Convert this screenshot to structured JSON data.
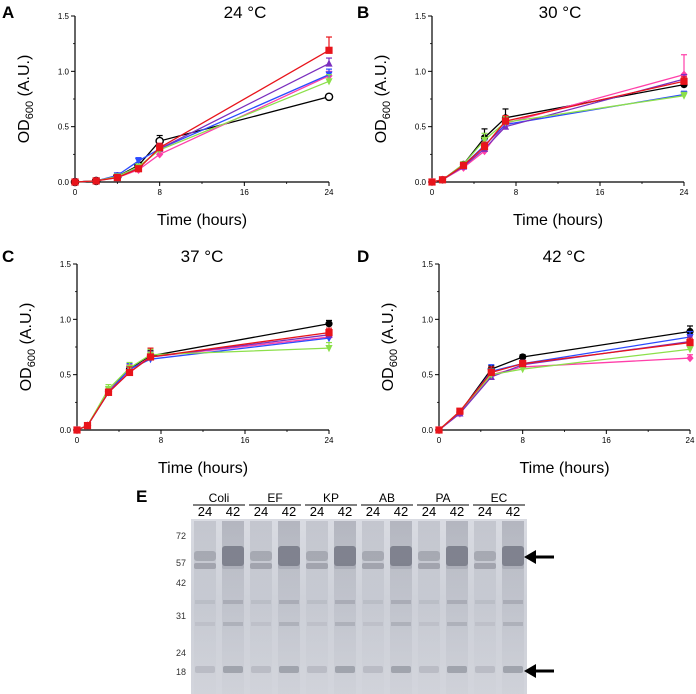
{
  "figure": {
    "series_colors": {
      "Coli": "#000000",
      "EF": "#ff3fa9",
      "KP": "#2b4bff",
      "AB": "#7b2fbe",
      "PA": "#8ce04a",
      "EC": "#e8141b"
    },
    "ylabel_main": "OD",
    "ylabel_sub": "600",
    "ylabel_suffix": " (A.U.)"
  },
  "chart_data": [
    {
      "panel": "A",
      "type": "line",
      "title": "24 °C",
      "xlabel": "Time (hours)",
      "ylabel": "OD600 (A.U.)",
      "xlim": [
        0,
        24
      ],
      "ylim": [
        0,
        1.5
      ],
      "xticks": [
        "0",
        "8",
        "16",
        "24"
      ],
      "yticks": [
        "0.0",
        "0.5",
        "1.0",
        "1.5"
      ],
      "x": [
        0,
        2,
        4,
        6,
        8,
        24
      ],
      "series": [
        {
          "name": "Coli",
          "values": [
            0.0,
            0.01,
            0.05,
            0.15,
            0.37,
            0.77
          ],
          "errors": [
            0,
            0,
            0.01,
            0.02,
            0.05,
            0.02
          ],
          "marker": "open-circle"
        },
        {
          "name": "EF",
          "values": [
            0.0,
            0.01,
            0.04,
            0.11,
            0.25,
            0.96
          ],
          "errors": [
            0,
            0,
            0.01,
            0.02,
            0.03,
            0.04
          ],
          "marker": "diamond"
        },
        {
          "name": "KP",
          "values": [
            0.0,
            0.01,
            0.06,
            0.19,
            0.3,
            0.97
          ],
          "errors": [
            0,
            0,
            0.01,
            0.03,
            0.04,
            0.05
          ],
          "marker": "triangle-down"
        },
        {
          "name": "AB",
          "values": [
            0.0,
            0.01,
            0.05,
            0.13,
            0.3,
            1.07
          ],
          "errors": [
            0,
            0,
            0.01,
            0.02,
            0.03,
            0.05
          ],
          "marker": "triangle-up"
        },
        {
          "name": "PA",
          "values": [
            0.0,
            0.01,
            0.05,
            0.14,
            0.29,
            0.91
          ],
          "errors": [
            0,
            0,
            0.01,
            0.02,
            0.03,
            0.06
          ],
          "marker": "triangle-down"
        },
        {
          "name": "EC",
          "values": [
            0.0,
            0.01,
            0.04,
            0.12,
            0.31,
            1.19
          ],
          "errors": [
            0,
            0,
            0.01,
            0.02,
            0.04,
            0.12
          ],
          "marker": "square"
        }
      ]
    },
    {
      "panel": "B",
      "type": "line",
      "title": "30 °C",
      "xlabel": "Time (hours)",
      "ylabel": "OD600 (A.U.)",
      "xlim": [
        0,
        24
      ],
      "ylim": [
        0,
        1.5
      ],
      "xticks": [
        "0",
        "8",
        "16",
        "24"
      ],
      "yticks": [
        "0.0",
        "0.5",
        "1.0",
        "1.5"
      ],
      "x": [
        0,
        1,
        3,
        5,
        7,
        24
      ],
      "series": [
        {
          "name": "Coli",
          "values": [
            0.0,
            0.02,
            0.16,
            0.4,
            0.58,
            0.88
          ],
          "errors": [
            0,
            0,
            0.02,
            0.08,
            0.08,
            0.03
          ],
          "marker": "circle"
        },
        {
          "name": "EF",
          "values": [
            0.0,
            0.02,
            0.13,
            0.28,
            0.53,
            0.97
          ],
          "errors": [
            0,
            0,
            0.02,
            0.05,
            0.05,
            0.18
          ],
          "marker": "diamond"
        },
        {
          "name": "KP",
          "values": [
            0.0,
            0.02,
            0.15,
            0.33,
            0.52,
            0.79
          ],
          "errors": [
            0,
            0,
            0.03,
            0.05,
            0.04,
            0.03
          ],
          "marker": "triangle-down"
        },
        {
          "name": "AB",
          "values": [
            0.0,
            0.02,
            0.14,
            0.3,
            0.5,
            0.93
          ],
          "errors": [
            0,
            0,
            0.02,
            0.04,
            0.04,
            0.04
          ],
          "marker": "triangle-up"
        },
        {
          "name": "PA",
          "values": [
            0.0,
            0.02,
            0.16,
            0.38,
            0.54,
            0.78
          ],
          "errors": [
            0,
            0,
            0.02,
            0.06,
            0.05,
            0.03
          ],
          "marker": "triangle-down"
        },
        {
          "name": "EC",
          "values": [
            0.0,
            0.02,
            0.15,
            0.32,
            0.55,
            0.91
          ],
          "errors": [
            0,
            0,
            0.02,
            0.04,
            0.05,
            0.04
          ],
          "marker": "square"
        }
      ]
    },
    {
      "panel": "C",
      "type": "line",
      "title": "37 °C",
      "xlabel": "Time (hours)",
      "ylabel": "OD600 (A.U.)",
      "xlim": [
        0,
        24
      ],
      "ylim": [
        0,
        1.5
      ],
      "xticks": [
        "0",
        "8",
        "16",
        "24"
      ],
      "yticks": [
        "0.0",
        "0.5",
        "1.0",
        "1.5"
      ],
      "x": [
        0,
        1,
        3,
        5,
        7,
        24
      ],
      "series": [
        {
          "name": "Coli",
          "values": [
            0.0,
            0.04,
            0.35,
            0.55,
            0.67,
            0.96
          ],
          "errors": [
            0,
            0.01,
            0.03,
            0.05,
            0.05,
            0.03
          ],
          "marker": "circle"
        },
        {
          "name": "EF",
          "values": [
            0.0,
            0.04,
            0.35,
            0.54,
            0.66,
            0.84
          ],
          "errors": [
            0,
            0.01,
            0.03,
            0.05,
            0.05,
            0.04
          ],
          "marker": "diamond"
        },
        {
          "name": "KP",
          "values": [
            0.0,
            0.04,
            0.34,
            0.55,
            0.64,
            0.83
          ],
          "errors": [
            0,
            0.01,
            0.03,
            0.05,
            0.05,
            0.04
          ],
          "marker": "triangle-down"
        },
        {
          "name": "AB",
          "values": [
            0.0,
            0.04,
            0.34,
            0.52,
            0.66,
            0.86
          ],
          "errors": [
            0,
            0.01,
            0.03,
            0.05,
            0.05,
            0.04
          ],
          "marker": "triangle-up"
        },
        {
          "name": "PA",
          "values": [
            0.0,
            0.04,
            0.37,
            0.56,
            0.68,
            0.74
          ],
          "errors": [
            0,
            0.01,
            0.04,
            0.05,
            0.05,
            0.05
          ],
          "marker": "triangle-down"
        },
        {
          "name": "EC",
          "values": [
            0.0,
            0.04,
            0.34,
            0.52,
            0.66,
            0.88
          ],
          "errors": [
            0,
            0.01,
            0.03,
            0.05,
            0.08,
            0.04
          ],
          "marker": "square"
        }
      ]
    },
    {
      "panel": "D",
      "type": "line",
      "title": "42 °C",
      "xlabel": "Time (hours)",
      "ylabel": "OD600 (A.U.)",
      "xlim": [
        0,
        24
      ],
      "ylim": [
        0,
        1.5
      ],
      "xticks": [
        "0",
        "8",
        "16",
        "24"
      ],
      "yticks": [
        "0.0",
        "0.5",
        "1.0",
        "1.5"
      ],
      "x": [
        0,
        2,
        5,
        8,
        24
      ],
      "series": [
        {
          "name": "Coli",
          "values": [
            0.0,
            0.16,
            0.55,
            0.66,
            0.89
          ],
          "errors": [
            0,
            0.02,
            0.03,
            0.02,
            0.05
          ],
          "marker": "circle"
        },
        {
          "name": "EF",
          "values": [
            0.0,
            0.15,
            0.5,
            0.57,
            0.65
          ],
          "errors": [
            0,
            0.02,
            0.05,
            0.03,
            0.03
          ],
          "marker": "diamond"
        },
        {
          "name": "KP",
          "values": [
            0.0,
            0.16,
            0.53,
            0.6,
            0.84
          ],
          "errors": [
            0,
            0.02,
            0.06,
            0.03,
            0.05
          ],
          "marker": "triangle-down"
        },
        {
          "name": "AB",
          "values": [
            0.0,
            0.15,
            0.48,
            0.59,
            0.8
          ],
          "errors": [
            0,
            0.02,
            0.06,
            0.03,
            0.05
          ],
          "marker": "triangle-up"
        },
        {
          "name": "PA",
          "values": [
            0.0,
            0.17,
            0.5,
            0.55,
            0.73
          ],
          "errors": [
            0,
            0.02,
            0.05,
            0.03,
            0.04
          ],
          "marker": "triangle-down"
        },
        {
          "name": "EC",
          "values": [
            0.0,
            0.17,
            0.52,
            0.6,
            0.79
          ],
          "errors": [
            0,
            0.02,
            0.05,
            0.03,
            0.04
          ],
          "marker": "square"
        }
      ]
    }
  ],
  "gel": {
    "panel": "E",
    "groups": [
      "Coli",
      "EF",
      "KP",
      "AB",
      "PA",
      "EC"
    ],
    "lanes": [
      "24",
      "42",
      "24",
      "42",
      "24",
      "42",
      "24",
      "42",
      "24",
      "42",
      "24",
      "42"
    ],
    "mw_markers": [
      "72",
      "57",
      "42",
      "31",
      "24",
      "18"
    ],
    "arrow_labels": [
      "upper-band-arrow",
      "lower-band-arrow"
    ]
  }
}
